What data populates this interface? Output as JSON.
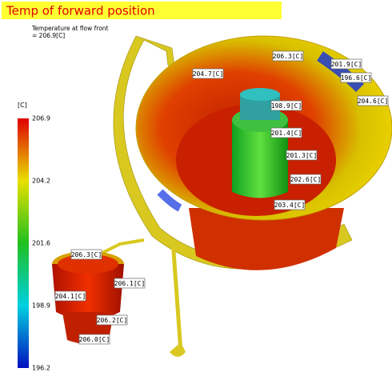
{
  "header": {
    "title": "Temp of forward position",
    "subtitle": "Temperature at flow front",
    "subtitle_value": "= 206.9[C]"
  },
  "legend": {
    "unit": "[C]",
    "ticks": [
      "206.9",
      "204.2",
      "201.6",
      "198.9",
      "196.2"
    ]
  },
  "probes": [
    "206.3[C]",
    "201.9[C]",
    "196.6[C]",
    "204.7[C]",
    "204.6[C]",
    "198.9[C]",
    "201.4[C]",
    "201.3[C]",
    "202.6[C]",
    "203.4[C]",
    "206.3[C]",
    "206.1[C]",
    "204.1[C]",
    "206.2[C]",
    "206.0[C]"
  ]
}
